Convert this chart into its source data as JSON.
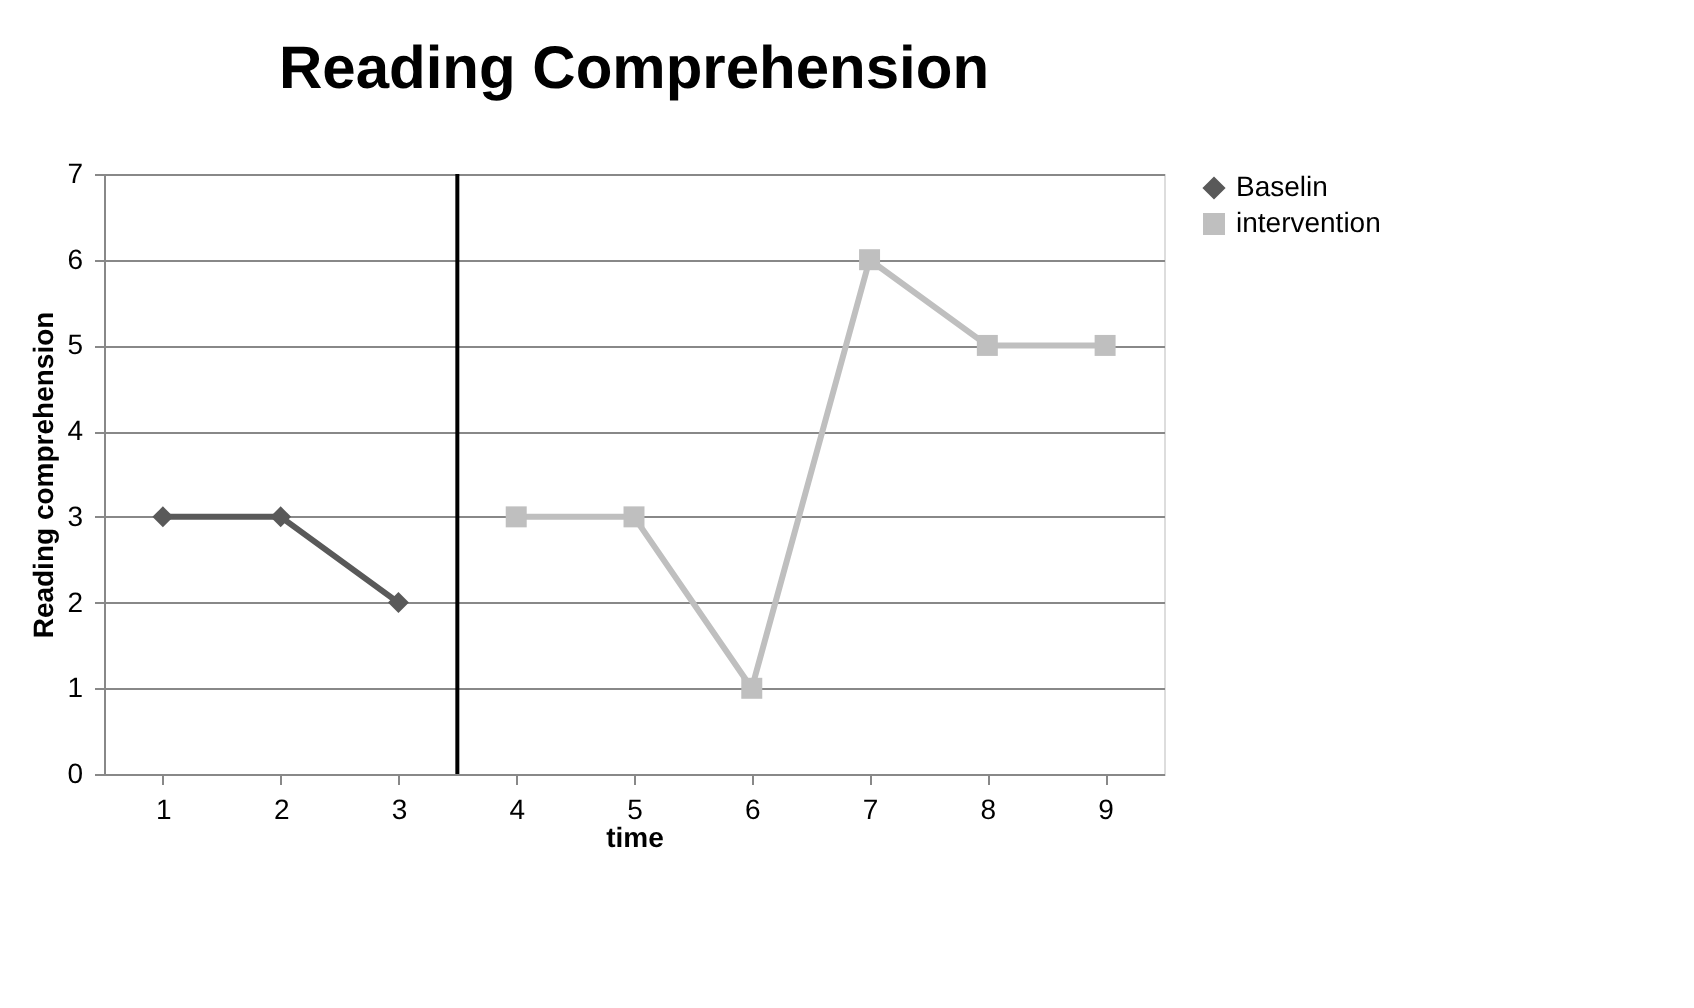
{
  "chart_data": {
    "type": "line",
    "title": "Reading Comprehension",
    "xlabel": "time",
    "ylabel": "Reading comprehension",
    "x": [
      1,
      2,
      3,
      4,
      5,
      6,
      7,
      8,
      9
    ],
    "xlim": [
      0.5,
      9.5
    ],
    "xticks": [
      1,
      2,
      3,
      4,
      5,
      6,
      7,
      8,
      9
    ],
    "ylim": [
      0,
      7
    ],
    "yticks": [
      0,
      1,
      2,
      3,
      4,
      5,
      6,
      7
    ],
    "grid": "y",
    "legend": "right",
    "series": [
      {
        "name": "Baselin",
        "color": "#595959",
        "marker": "diamond",
        "values": [
          3,
          3,
          2,
          null,
          null,
          null,
          null,
          null,
          null
        ]
      },
      {
        "name": "intervention",
        "color": "#bfbfbf",
        "marker": "square",
        "values": [
          null,
          null,
          null,
          3,
          3,
          1,
          6,
          5,
          5
        ]
      }
    ],
    "ref_lines": [
      {
        "axis": "x",
        "value": 3.5,
        "color": "#000000"
      }
    ]
  }
}
